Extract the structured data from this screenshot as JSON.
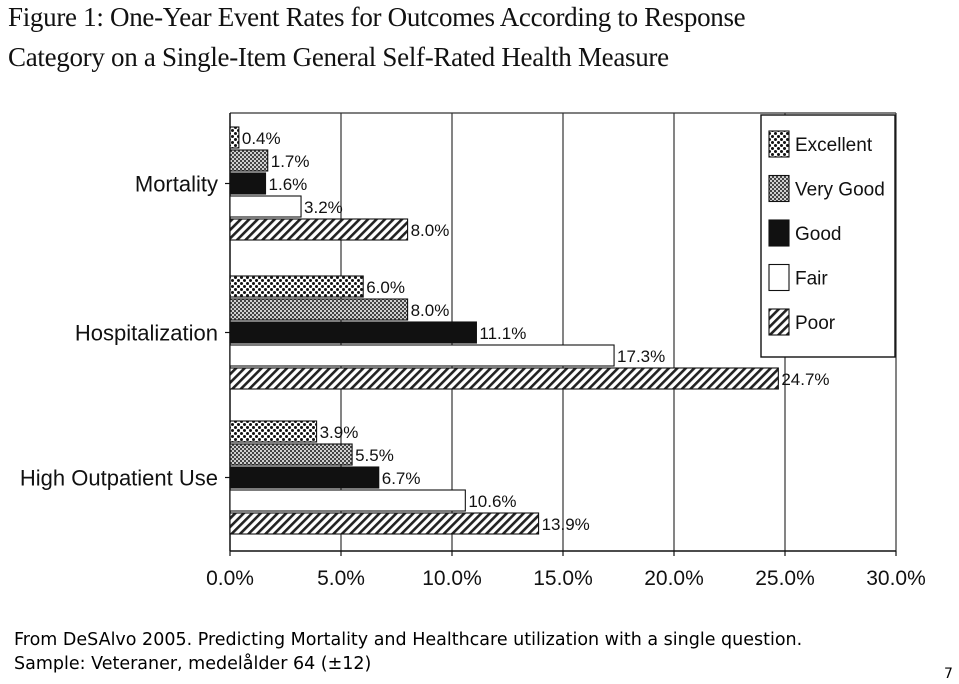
{
  "figure": {
    "title_line1": "Figure 1:   One-Year Event Rates for Outcomes According to Response",
    "title_line2": "Category on a Single-Item General Self-Rated Health Measure"
  },
  "chart_data": {
    "type": "bar",
    "orientation": "horizontal",
    "title": "One-Year Event Rates for Outcomes According to Response Category on a Single-Item General Self-Rated Health Measure",
    "categories": [
      "Mortality",
      "Hospitalization",
      "High Outpatient Use"
    ],
    "series": [
      {
        "name": "Excellent",
        "pattern": "dots",
        "values": [
          0.4,
          6.0,
          3.9
        ],
        "labels": [
          "0.4%",
          "6.0%",
          "3.9%"
        ]
      },
      {
        "name": "Very Good",
        "pattern": "checker",
        "values": [
          1.7,
          8.0,
          5.5
        ],
        "labels": [
          "1.7%",
          "8.0%",
          "5.5%"
        ]
      },
      {
        "name": "Good",
        "pattern": "solid",
        "values": [
          1.6,
          11.1,
          6.7
        ],
        "labels": [
          "1.6%",
          "11.1%",
          "6.7%"
        ]
      },
      {
        "name": "Fair",
        "pattern": "none",
        "values": [
          3.2,
          17.3,
          10.6
        ],
        "labels": [
          "3.2%",
          "17.3%",
          "10.6%"
        ]
      },
      {
        "name": "Poor",
        "pattern": "diagonal",
        "values": [
          8.0,
          24.7,
          13.9
        ],
        "labels": [
          "8.0%",
          "24.7%",
          "13.9%"
        ]
      }
    ],
    "xlim": [
      0,
      30
    ],
    "xticks": [
      0,
      5,
      10,
      15,
      20,
      25,
      30
    ],
    "xtick_labels": [
      "0.0%",
      "5.0%",
      "10.0%",
      "15.0%",
      "20.0%",
      "25.0%",
      "30.0%"
    ],
    "xlabel": "",
    "ylabel": "",
    "grid": "vertical",
    "legend_position": "top-right",
    "colors": {
      "ink": "#111111",
      "grid": "#333333",
      "fill": "#ffffff"
    }
  },
  "caption": {
    "line1": "From DeSAlvo 2005. Predicting Mortality and Healthcare utilization with a single question.",
    "line2": "Sample: Veteraner, medelålder 64 (±12)"
  },
  "page_number": "7"
}
